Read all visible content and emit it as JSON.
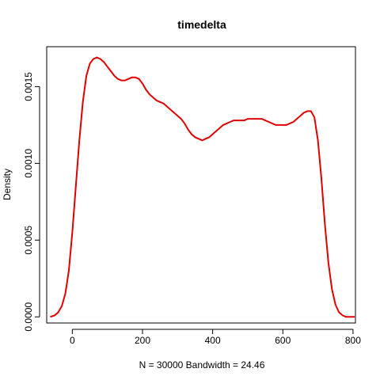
{
  "chart_data": {
    "type": "line",
    "title": "timedelta",
    "xlabel": "N = 30000   Bandwidth = 24.46",
    "ylabel": "Density",
    "xlim": [
      -73,
      807
    ],
    "ylim": [
      -4e-05,
      0.00176
    ],
    "x_ticks": [
      0,
      200,
      400,
      600,
      800
    ],
    "y_ticks": [
      0.0,
      0.0005,
      0.001,
      0.0015
    ],
    "x_tick_labels": [
      "0",
      "200",
      "400",
      "600",
      "800"
    ],
    "y_tick_labels": [
      "0.0000",
      "0.0005",
      "0.0010",
      "0.0015"
    ],
    "grid": false,
    "legend": "none",
    "series": [
      {
        "color": "#e00000",
        "x": [
          -63,
          -50,
          -40,
          -30,
          -20,
          -10,
          0,
          10,
          20,
          30,
          40,
          50,
          60,
          70,
          80,
          90,
          100,
          110,
          120,
          130,
          140,
          150,
          160,
          170,
          180,
          190,
          200,
          210,
          220,
          230,
          240,
          250,
          260,
          270,
          280,
          290,
          300,
          310,
          320,
          330,
          340,
          350,
          360,
          370,
          380,
          390,
          400,
          410,
          420,
          430,
          440,
          450,
          460,
          470,
          480,
          490,
          500,
          510,
          520,
          530,
          540,
          550,
          560,
          570,
          580,
          590,
          600,
          610,
          620,
          630,
          640,
          650,
          660,
          670,
          680,
          690,
          700,
          710,
          720,
          730,
          740,
          750,
          760,
          770,
          780,
          790,
          800,
          805
        ],
        "y": [
          0.0,
          1e-05,
          3e-05,
          7e-05,
          0.00015,
          0.0003,
          0.00055,
          0.00085,
          0.00115,
          0.0014,
          0.00157,
          0.00165,
          0.00168,
          0.00169,
          0.00168,
          0.00166,
          0.00163,
          0.0016,
          0.00157,
          0.00155,
          0.00154,
          0.00154,
          0.00155,
          0.00156,
          0.00156,
          0.00155,
          0.00152,
          0.00148,
          0.00145,
          0.00143,
          0.00141,
          0.0014,
          0.00139,
          0.00137,
          0.00135,
          0.00133,
          0.00131,
          0.00129,
          0.00126,
          0.00122,
          0.00119,
          0.00117,
          0.00116,
          0.00115,
          0.00116,
          0.00117,
          0.00119,
          0.00121,
          0.00123,
          0.00125,
          0.00126,
          0.00127,
          0.00128,
          0.00128,
          0.00128,
          0.00128,
          0.00129,
          0.00129,
          0.00129,
          0.00129,
          0.00129,
          0.00128,
          0.00127,
          0.00126,
          0.00125,
          0.00125,
          0.00125,
          0.00125,
          0.00126,
          0.00127,
          0.00129,
          0.00131,
          0.00133,
          0.00134,
          0.00134,
          0.0013,
          0.00115,
          0.0009,
          0.0006,
          0.00035,
          0.00018,
          8e-05,
          3e-05,
          1e-05,
          0.0,
          0.0,
          0.0,
          0.0
        ]
      }
    ]
  }
}
